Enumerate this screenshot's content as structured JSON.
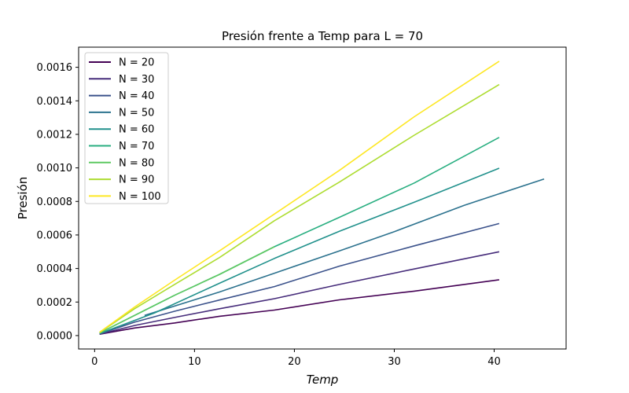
{
  "chart_data": {
    "type": "line",
    "title": "Presión frente a Temp para L = 70",
    "xlabel": "Temp",
    "ylabel": "Presión",
    "xlim": [
      -1.6,
      47.2
    ],
    "ylim": [
      -8e-05,
      0.00172
    ],
    "xticks": [
      0,
      10,
      20,
      30,
      40
    ],
    "xtick_labels": [
      "0",
      "10",
      "20",
      "30",
      "40"
    ],
    "yticks": [
      0,
      0.0002,
      0.0004,
      0.0006,
      0.0008,
      0.001,
      0.0012,
      0.0014,
      0.0016
    ],
    "ytick_labels": [
      "0.0000",
      "0.0002",
      "0.0004",
      "0.0006",
      "0.0008",
      "0.0010",
      "0.0012",
      "0.0014",
      "0.0016"
    ],
    "grid": false,
    "legend_position": "top-left",
    "series": [
      {
        "name": "N = 20",
        "color": "#440154",
        "x": [
          0.5,
          4,
          8,
          12.5,
          18,
          24.5,
          32,
          40.5
        ],
        "y": [
          8e-06,
          4.5e-05,
          7.5e-05,
          0.000115,
          0.000152,
          0.000213,
          0.000265,
          0.000333
        ]
      },
      {
        "name": "N = 30",
        "color": "#472d7b",
        "x": [
          0.5,
          4,
          8,
          12.5,
          18,
          24.5,
          32,
          40.5
        ],
        "y": [
          8e-06,
          6e-05,
          0.000108,
          0.00016,
          0.00022,
          0.000305,
          0.000397,
          0.0005
        ]
      },
      {
        "name": "N = 40",
        "color": "#3b528b",
        "x": [
          0.5,
          4,
          8,
          12.5,
          18,
          24.5,
          32,
          40.5
        ],
        "y": [
          1e-05,
          8e-05,
          0.000145,
          0.000212,
          0.000292,
          0.000414,
          0.000535,
          0.000668
        ]
      },
      {
        "name": "N = 50",
        "color": "#2c728e",
        "x": [
          5,
          12.5,
          18,
          24.5,
          30,
          37,
          45
        ],
        "y": [
          0.00012,
          0.00026,
          0.000372,
          0.000505,
          0.00062,
          0.000777,
          0.000934
        ]
      },
      {
        "name": "N = 60",
        "color": "#21918c",
        "x": [
          0.5,
          6,
          12.5,
          18,
          24.5,
          32,
          40.5
        ],
        "y": [
          1.2e-05,
          0.000135,
          0.000312,
          0.00046,
          0.000622,
          0.000795,
          0.000998
        ]
      },
      {
        "name": "N = 70",
        "color": "#28ae80",
        "x": [
          0.5,
          8,
          12.5,
          18,
          24.5,
          32,
          40.5
        ],
        "y": [
          1.5e-05,
          0.00024,
          0.000365,
          0.00053,
          0.000705,
          0.00091,
          0.001182
        ]
      },
      {
        "name": "N = 80",
        "color": "#5ec962",
        "x": [
          0.5,
          8,
          12.5,
          18
        ],
        "y": [
          1.5e-05,
          0.00024,
          0.000365,
          0.00053
        ]
      },
      {
        "name": "N = 90",
        "color": "#addc30",
        "x": [
          0.5,
          4,
          8,
          12.5,
          18,
          24.5,
          32,
          40.5
        ],
        "y": [
          1.8e-05,
          0.00016,
          0.000305,
          0.000465,
          0.000685,
          0.000915,
          0.001195,
          0.001497
        ]
      },
      {
        "name": "N = 100",
        "color": "#fde725",
        "x": [
          0.5,
          4,
          8,
          12.5,
          18,
          24.5,
          32,
          40.5
        ],
        "y": [
          2e-05,
          0.00017,
          0.00033,
          0.000505,
          0.000725,
          0.000985,
          0.001305,
          0.001636
        ]
      }
    ]
  }
}
